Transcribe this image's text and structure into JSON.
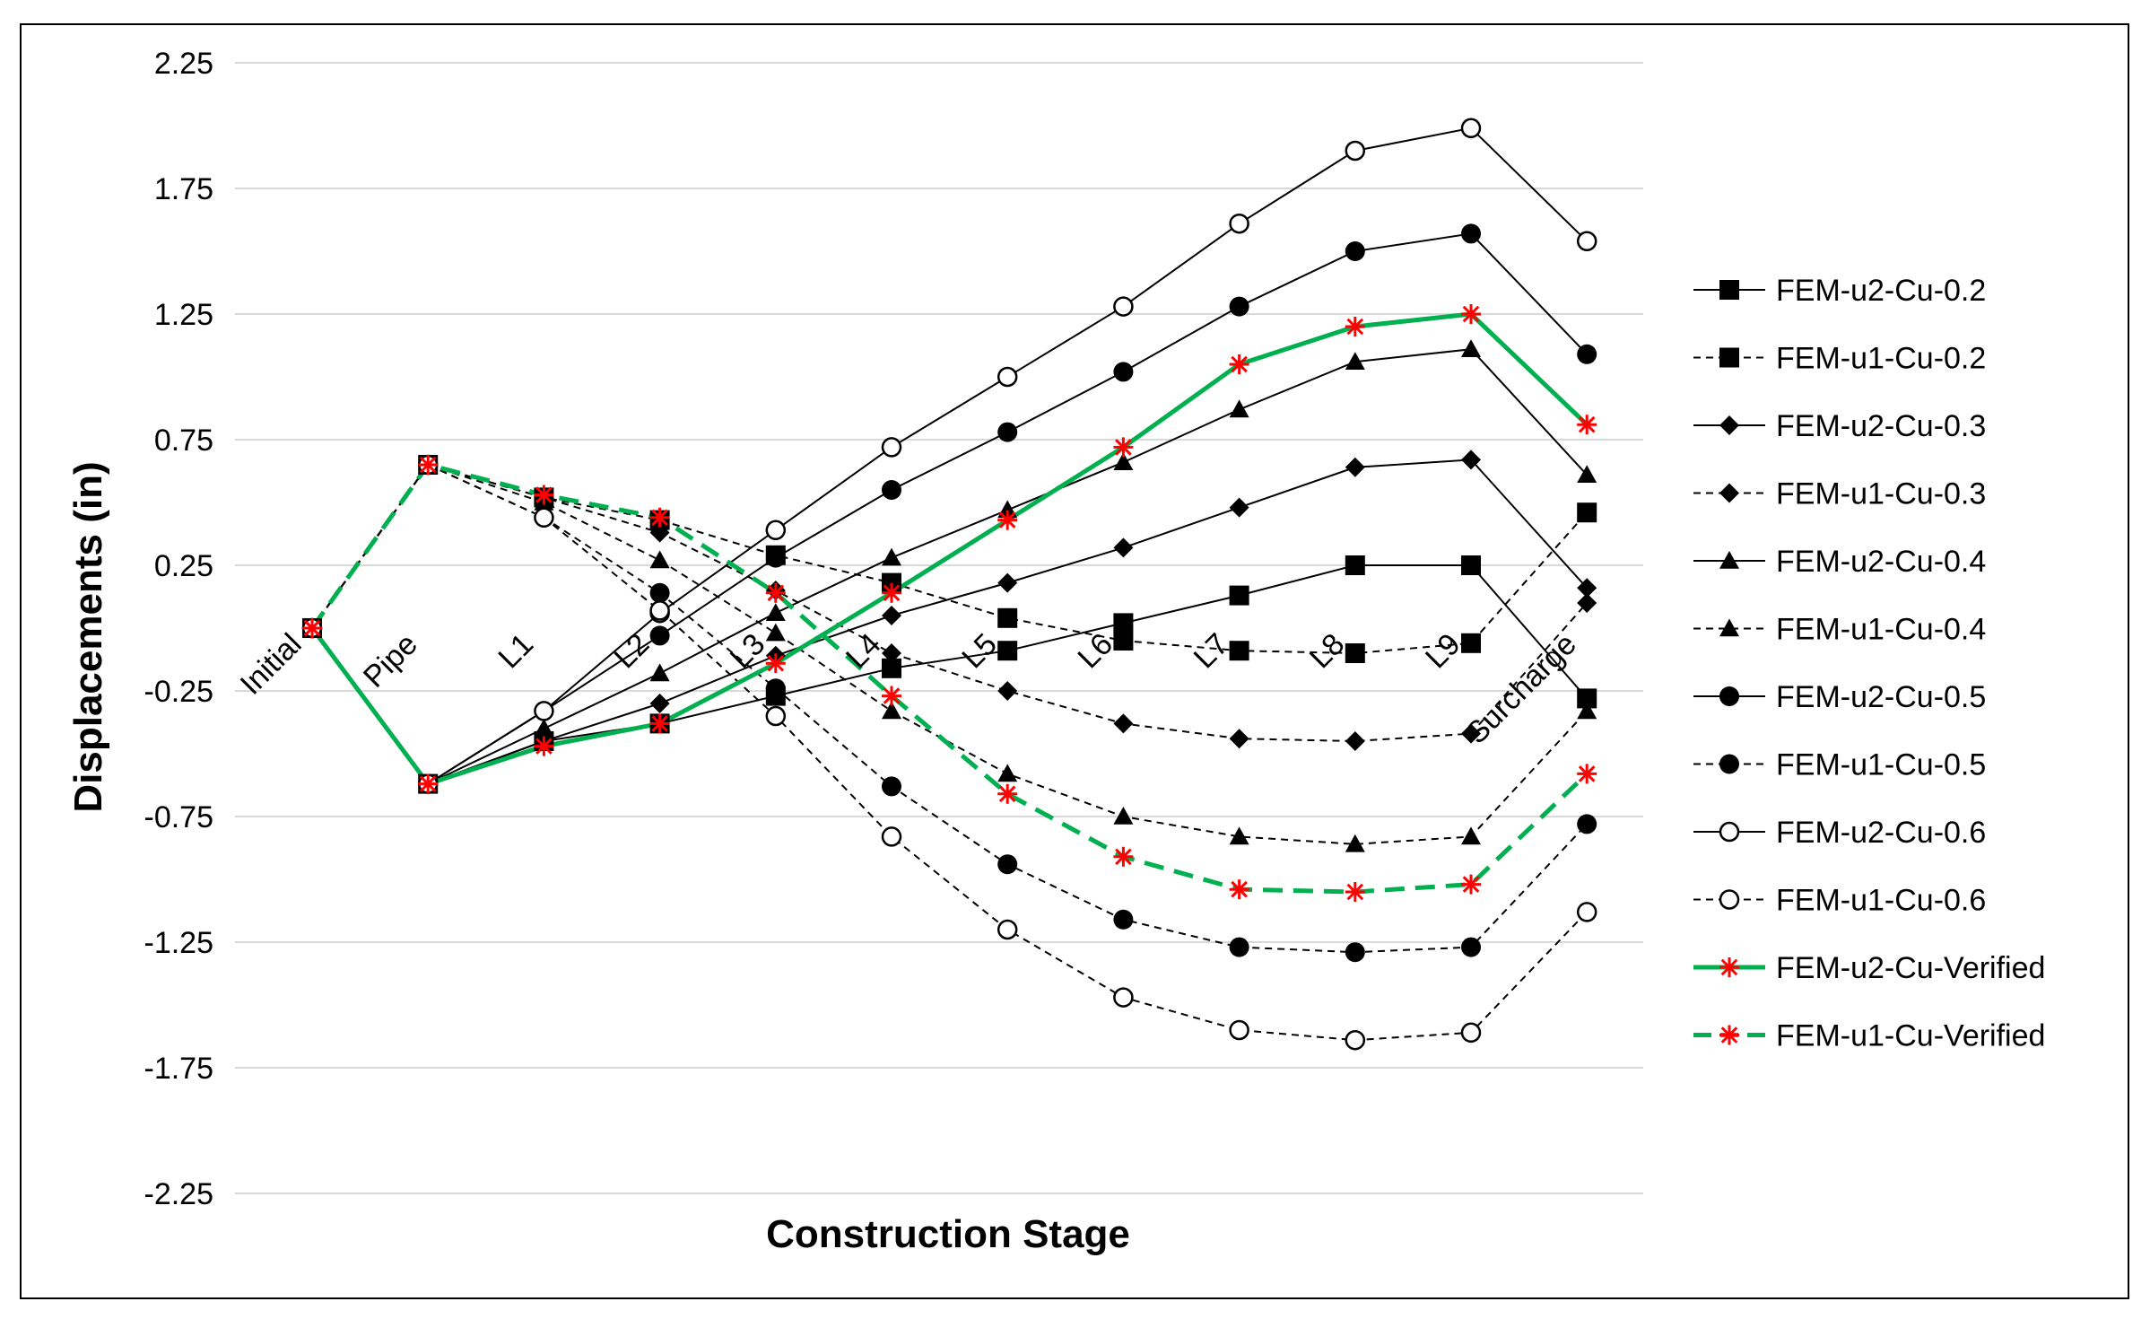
{
  "chart_data": {
    "type": "line",
    "title": "",
    "xlabel": "Construction Stage",
    "ylabel": "Displacements (in)",
    "ylim": [
      -2.25,
      2.25
    ],
    "yticks": [
      "2.25",
      "1.75",
      "1.25",
      "0.75",
      "0.25",
      "-0.25",
      "-0.75",
      "-1.25",
      "-1.75",
      "-2.25"
    ],
    "categories": [
      "Initial",
      "Pipe",
      "L1",
      "L2",
      "L3",
      "L4",
      "L5",
      "L6",
      "L7",
      "L8",
      "L9",
      "Surcharge"
    ],
    "legend_position": "right",
    "series": [
      {
        "name": "FEM-u2-Cu-0.2",
        "dash": "solid",
        "marker": "square",
        "color": "#000000",
        "values": [
          0,
          -0.62,
          -0.45,
          -0.38,
          -0.27,
          -0.16,
          -0.09,
          0.02,
          0.13,
          0.25,
          0.25,
          -0.28
        ]
      },
      {
        "name": "FEM-u1-Cu-0.2",
        "dash": "dashed",
        "marker": "square",
        "color": "#000000",
        "values": [
          0,
          0.65,
          0.52,
          0.43,
          0.29,
          0.18,
          0.04,
          -0.05,
          -0.09,
          -0.1,
          -0.06,
          0.46
        ]
      },
      {
        "name": "FEM-u2-Cu-0.3",
        "dash": "solid",
        "marker": "diamond",
        "color": "#000000",
        "values": [
          0,
          -0.62,
          -0.45,
          -0.3,
          -0.11,
          0.05,
          0.18,
          0.32,
          0.48,
          0.64,
          0.67,
          0.16
        ]
      },
      {
        "name": "FEM-u1-Cu-0.3",
        "dash": "dashed",
        "marker": "diamond",
        "color": "#000000",
        "values": [
          0,
          0.65,
          0.52,
          0.38,
          0.15,
          -0.1,
          -0.25,
          -0.38,
          -0.44,
          -0.45,
          -0.42,
          0.1
        ]
      },
      {
        "name": "FEM-u2-Cu-0.4",
        "dash": "solid",
        "marker": "triangle",
        "color": "#000000",
        "values": [
          0,
          -0.62,
          -0.4,
          -0.18,
          0.06,
          0.28,
          0.47,
          0.66,
          0.87,
          1.06,
          1.11,
          0.61
        ]
      },
      {
        "name": "FEM-u1-Cu-0.4",
        "dash": "dashed",
        "marker": "triangle",
        "color": "#000000",
        "values": [
          0,
          0.65,
          0.5,
          0.27,
          -0.02,
          -0.33,
          -0.58,
          -0.75,
          -0.83,
          -0.86,
          -0.83,
          -0.33
        ]
      },
      {
        "name": "FEM-u2-Cu-0.5",
        "dash": "solid",
        "marker": "circle-filled",
        "color": "#000000",
        "values": [
          0,
          -0.62,
          -0.33,
          -0.03,
          0.28,
          0.55,
          0.78,
          1.02,
          1.28,
          1.5,
          1.57,
          1.09
        ]
      },
      {
        "name": "FEM-u1-Cu-0.5",
        "dash": "dashed",
        "marker": "circle-filled",
        "color": "#000000",
        "values": [
          0,
          0.65,
          0.44,
          0.14,
          -0.24,
          -0.63,
          -0.94,
          -1.16,
          -1.27,
          -1.29,
          -1.27,
          -0.78
        ]
      },
      {
        "name": "FEM-u2-Cu-0.6",
        "dash": "solid",
        "marker": "circle-open",
        "color": "#000000",
        "values": [
          0,
          -0.62,
          -0.33,
          0.06,
          0.39,
          0.72,
          1.0,
          1.28,
          1.61,
          1.9,
          1.99,
          1.54
        ]
      },
      {
        "name": "FEM-u1-Cu-0.6",
        "dash": "dashed",
        "marker": "circle-open",
        "color": "#000000",
        "values": [
          0,
          0.65,
          0.44,
          0.07,
          -0.35,
          -0.83,
          -1.2,
          -1.47,
          -1.6,
          -1.64,
          -1.61,
          -1.13
        ]
      },
      {
        "name": "FEM-u2-Cu-Verified",
        "dash": "solid",
        "marker": "asterisk",
        "color": "#00b050",
        "values": [
          0,
          -0.62,
          -0.47,
          -0.38,
          -0.14,
          0.14,
          0.43,
          0.72,
          1.05,
          1.2,
          1.25,
          0.81
        ]
      },
      {
        "name": "FEM-u1-Cu-Verified",
        "dash": "dashed",
        "marker": "asterisk",
        "color": "#00b050",
        "values": [
          0,
          0.65,
          0.53,
          0.44,
          0.14,
          -0.27,
          -0.66,
          -0.91,
          -1.04,
          -1.05,
          -1.02,
          -0.58
        ]
      }
    ]
  }
}
